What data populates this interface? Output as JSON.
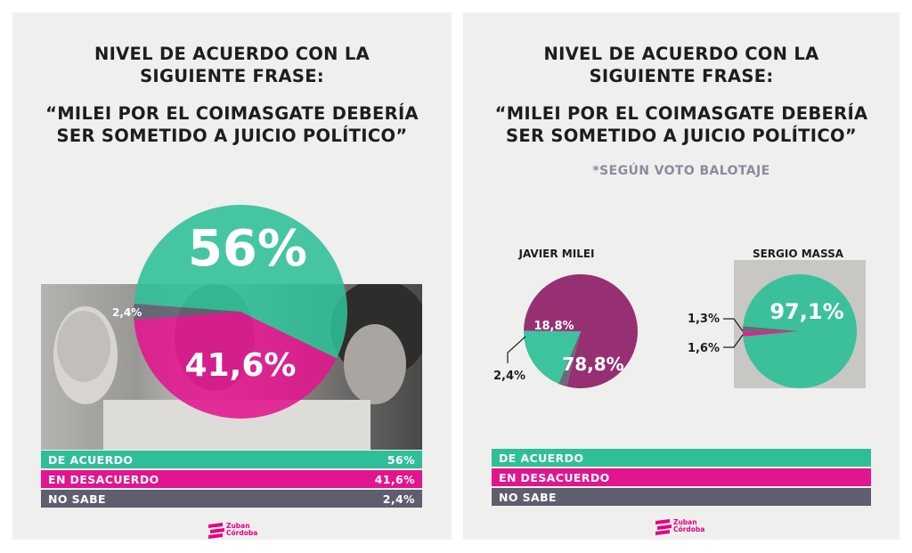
{
  "colors": {
    "agree": "#2fbf98",
    "disagree": "#e2148f",
    "dontknow": "#5f5e6f",
    "text": "#1d1d1d",
    "background": "#efefee"
  },
  "left_panel": {
    "title_line1": "NIVEL DE ACUERDO CON LA",
    "title_line2": "SIGUIENTE FRASE:",
    "quote_line1": "“MILEI POR EL COIMASGATE DEBERÍA",
    "quote_line2": "SER SOMETIDO A JUICIO POLÍTICO”",
    "legend": [
      {
        "label": "DE ACUERDO",
        "value": "56%"
      },
      {
        "label": "EN DESACUERDO",
        "value": "41,6%"
      },
      {
        "label": "NO SABE",
        "value": "2,4%"
      }
    ],
    "logo_line1": "Zuban",
    "logo_line2": "Córdoba"
  },
  "right_panel": {
    "title_line1": "NIVEL DE ACUERDO CON LA",
    "title_line2": "SIGUIENTE FRASE:",
    "quote_line1": "“MILEI POR EL COIMASGATE DEBERÍA",
    "quote_line2": "SER SOMETIDO A JUICIO POLÍTICO”",
    "note": "*SEGÚN VOTO BALOTAJE",
    "legend": [
      {
        "label": "DE ACUERDO"
      },
      {
        "label": "EN DESACUERDO"
      },
      {
        "label": "NO SABE"
      }
    ],
    "logo_line1": "Zuban",
    "logo_line2": "Córdoba"
  },
  "chart_data": [
    {
      "type": "pie",
      "title": "",
      "categories": [
        "DE ACUERDO",
        "EN DESACUERDO",
        "NO SABE"
      ],
      "values": [
        56,
        41.6,
        2.4
      ],
      "labels": [
        "56%",
        "41,6%",
        "2,4%"
      ],
      "colors": [
        "#2fbf98",
        "#e2148f",
        "#5f5e6f"
      ]
    },
    {
      "type": "pie",
      "title": "JAVIER MILEI",
      "categories": [
        "DE ACUERDO",
        "EN DESACUERDO",
        "NO SABE"
      ],
      "values": [
        18.8,
        78.8,
        2.4
      ],
      "labels": [
        "18,8%",
        "78,8%",
        "2,4%"
      ],
      "colors": [
        "#2fbf98",
        "#8f1f67",
        "#5f5e6f"
      ]
    },
    {
      "type": "pie",
      "title": "SERGIO MASSA",
      "categories": [
        "DE ACUERDO",
        "EN DESACUERDO",
        "NO SABE"
      ],
      "values": [
        97.1,
        1.3,
        1.6
      ],
      "labels": [
        "97,1%",
        "1,3%",
        "1,6%"
      ],
      "colors": [
        "#2fbf98",
        "#e2148f",
        "#5f5e6f"
      ]
    }
  ]
}
